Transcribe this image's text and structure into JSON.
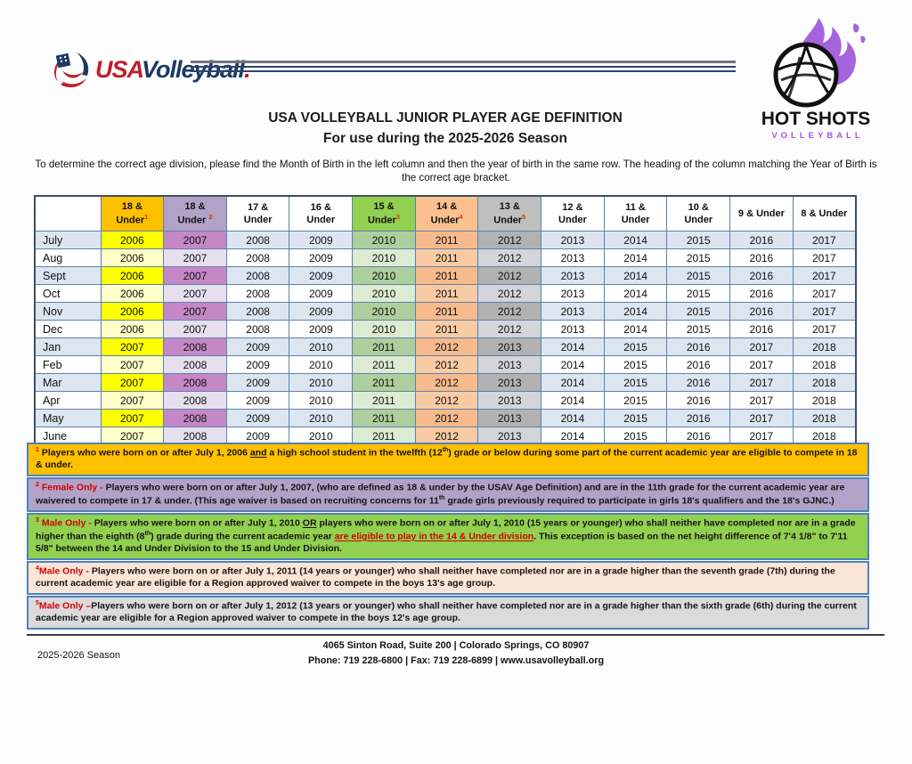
{
  "brand": {
    "usa": "USA",
    "volleyball": "Volleyball",
    "dot": "."
  },
  "hotshots": {
    "name": "HOT SHOTS",
    "sub": "VOLLEYBALL",
    "flame_color": "#A464DE"
  },
  "title": "USA VOLLEYBALL JUNIOR PLAYER AGE DEFINITION",
  "subtitle": "For use during the 2025-2026 Season",
  "intro": "To determine the correct age division, please find the Month of Birth in the left column and then the year of birth in the same row. The heading of the column matching the Year of Birth is the correct age bracket.",
  "table": {
    "columns": [
      {
        "h": "",
        "sup": "",
        "hbg": "#FFFFFF",
        "odd": "#DCE6F1",
        "even": "#FFFFFF"
      },
      {
        "h": "18 &|Under",
        "sup": "1",
        "hbg": "#FFC000",
        "odd": "#FFFF00",
        "even": "#FFFFC8"
      },
      {
        "h": "18 &|Under ",
        "sup": "2",
        "hbg": "#B2A2C7",
        "odd": "#C588C7",
        "even": "#E6E0EE"
      },
      {
        "h": "17 &|Under",
        "sup": "",
        "hbg": "#FFFFFF",
        "odd": "#DCE6F1",
        "even": "#FFFFFF"
      },
      {
        "h": "16 &|Under",
        "sup": "",
        "hbg": "#FFFFFF",
        "odd": "#DCE6F1",
        "even": "#FFFFFF"
      },
      {
        "h": "15 &|Under",
        "sup": "3",
        "hbg": "#92D050",
        "odd": "#ADCF9D",
        "even": "#DDEBD3"
      },
      {
        "h": "14 &|Under",
        "sup": "4",
        "hbg": "#FAC090",
        "odd": "#F6BA8C",
        "even": "#F9CBA4"
      },
      {
        "h": "13 &|Under",
        "sup": "5",
        "hbg": "#BFBFBF",
        "odd": "#B2B2B2",
        "even": "#D3D5DB"
      },
      {
        "h": "12 &|Under",
        "sup": "",
        "hbg": "#FFFFFF",
        "odd": "#DCE6F1",
        "even": "#FFFFFF"
      },
      {
        "h": "11 &|Under",
        "sup": "",
        "hbg": "#FFFFFF",
        "odd": "#DCE6F1",
        "even": "#FFFFFF"
      },
      {
        "h": "10 &|Under",
        "sup": "",
        "hbg": "#FFFFFF",
        "odd": "#DCE6F1",
        "even": "#FFFFFF"
      },
      {
        "h": "9 & Under",
        "sup": "",
        "hbg": "#FFFFFF",
        "odd": "#DCE6F1",
        "even": "#FFFFFF"
      },
      {
        "h": "8 & Under",
        "sup": "",
        "hbg": "#FFFFFF",
        "odd": "#DCE6F1",
        "even": "#FFFFFF"
      }
    ],
    "rows": [
      {
        "month": "July",
        "years": [
          "2006",
          "2007",
          "2008",
          "2009",
          "2010",
          "2011",
          "2012",
          "2013",
          "2014",
          "2015",
          "2016",
          "2017"
        ]
      },
      {
        "month": "Aug",
        "years": [
          "2006",
          "2007",
          "2008",
          "2009",
          "2010",
          "2011",
          "2012",
          "2013",
          "2014",
          "2015",
          "2016",
          "2017"
        ]
      },
      {
        "month": "Sept",
        "years": [
          "2006",
          "2007",
          "2008",
          "2009",
          "2010",
          "2011",
          "2012",
          "2013",
          "2014",
          "2015",
          "2016",
          "2017"
        ]
      },
      {
        "month": "Oct",
        "years": [
          "2006",
          "2007",
          "2008",
          "2009",
          "2010",
          "2011",
          "2012",
          "2013",
          "2014",
          "2015",
          "2016",
          "2017"
        ]
      },
      {
        "month": "Nov",
        "years": [
          "2006",
          "2007",
          "2008",
          "2009",
          "2010",
          "2011",
          "2012",
          "2013",
          "2014",
          "2015",
          "2016",
          "2017"
        ]
      },
      {
        "month": "Dec",
        "years": [
          "2006",
          "2007",
          "2008",
          "2009",
          "2010",
          "2011",
          "2012",
          "2013",
          "2014",
          "2015",
          "2016",
          "2017"
        ]
      },
      {
        "month": "Jan",
        "years": [
          "2007",
          "2008",
          "2009",
          "2010",
          "2011",
          "2012",
          "2013",
          "2014",
          "2015",
          "2016",
          "2017",
          "2018"
        ]
      },
      {
        "month": "Feb",
        "years": [
          "2007",
          "2008",
          "2009",
          "2010",
          "2011",
          "2012",
          "2013",
          "2014",
          "2015",
          "2016",
          "2017",
          "2018"
        ]
      },
      {
        "month": "Mar",
        "years": [
          "2007",
          "2008",
          "2009",
          "2010",
          "2011",
          "2012",
          "2013",
          "2014",
          "2015",
          "2016",
          "2017",
          "2018"
        ]
      },
      {
        "month": "Apr",
        "years": [
          "2007",
          "2008",
          "2009",
          "2010",
          "2011",
          "2012",
          "2013",
          "2014",
          "2015",
          "2016",
          "2017",
          "2018"
        ]
      },
      {
        "month": "May",
        "years": [
          "2007",
          "2008",
          "2009",
          "2010",
          "2011",
          "2012",
          "2013",
          "2014",
          "2015",
          "2016",
          "2017",
          "2018"
        ]
      },
      {
        "month": "June",
        "years": [
          "2007",
          "2008",
          "2009",
          "2010",
          "2011",
          "2012",
          "2013",
          "2014",
          "2015",
          "2016",
          "2017",
          "2018"
        ]
      }
    ]
  },
  "footnotes": [
    {
      "bg": "#FFC000",
      "segments": [
        {
          "t": "1",
          "s": "sup-red"
        },
        {
          "t": " Players who were born on or after July 1, 2006 ",
          "s": ""
        },
        {
          "t": "and",
          "s": "u"
        },
        {
          "t": " a high school student in the twelfth (12",
          "s": ""
        },
        {
          "t": "th",
          "s": "sup"
        },
        {
          "t": ") grade or below during some part of the current academic year are eligible to compete in 18 & under.",
          "s": ""
        }
      ]
    },
    {
      "bg": "#B2A2C7",
      "segments": [
        {
          "t": "2",
          "s": "sup-red"
        },
        {
          "t": " Female Only - ",
          "s": "red"
        },
        {
          "t": "Players who were born on or after July 1, 2007, (who are defined as 18 & under by the USAV Age Definition) and are in the 11th grade for the current academic year are waivered to compete in 17 & under.  (This age waiver is based on recruiting concerns for 11",
          "s": ""
        },
        {
          "t": "th",
          "s": "sup"
        },
        {
          "t": " grade girls previously required to participate in girls 18's qualifiers and the 18's GJNC.)",
          "s": ""
        }
      ]
    },
    {
      "bg": "#92D050",
      "segments": [
        {
          "t": "3",
          "s": "sup-red"
        },
        {
          "t": " Male Only - ",
          "s": "red"
        },
        {
          "t": "Players who were born on or after July 1, 2010 ",
          "s": ""
        },
        {
          "t": "OR",
          "s": "u"
        },
        {
          "t": " players who were born on or after July 1, 2010 (15 years or younger) who shall neither have completed nor are in a grade higher than the eighth (8",
          "s": ""
        },
        {
          "t": "th",
          "s": "sup"
        },
        {
          "t": ") grade during the current academic year ",
          "s": ""
        },
        {
          "t": "are eligible to play in the 14 & Under division",
          "s": "red-u"
        },
        {
          "t": ".  This exception is based on the net height difference of 7'4 1/8\" to 7'11 5/8\" between the 14 and Under Division to the 15 and Under Division.",
          "s": ""
        }
      ]
    },
    {
      "bg": "#FBE5D6",
      "segments": [
        {
          "t": "4",
          "s": "sup-red"
        },
        {
          "t": "Male Only - ",
          "s": "red"
        },
        {
          "t": "Players who were born on or after July 1, 2011 (14 years or younger) who shall neither have completed nor are in a grade higher than the seventh grade (7th) during the current academic year are eligible for a Region approved waiver to compete in the boys 13's age group.",
          "s": ""
        }
      ]
    },
    {
      "bg": "#DBDBDB",
      "segments": [
        {
          "t": "5",
          "s": "sup-red"
        },
        {
          "t": "Male Only –",
          "s": "red"
        },
        {
          "t": "Players who were born on or after July 1, 2012 (13 years or younger) who shall neither have completed nor are in a grade higher than the sixth grade (6th) during the current academic year are eligible for a Region approved waiver to compete in the boys 12's age group.",
          "s": ""
        }
      ]
    }
  ],
  "footer": {
    "season": "2025-2026 Season",
    "address": "4065 Sinton Road, Suite 200  |  Colorado Springs, CO  80907",
    "contact": "Phone:  719 228-6800  |  Fax:  719 228-6899  |  www.usavolleyball.org"
  }
}
